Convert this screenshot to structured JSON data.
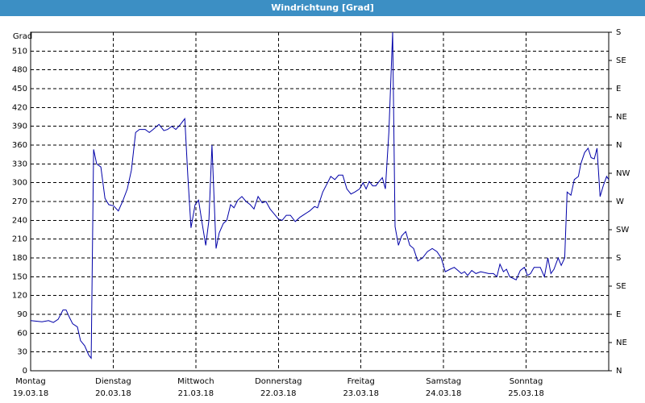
{
  "chart_data": {
    "type": "line",
    "title": "Windrichtung [Grad]",
    "y_label": "Grad",
    "color": "#0000a8",
    "grid": true,
    "xlim": [
      0,
      168
    ],
    "xticks": [
      {
        "value": 0,
        "label": "Montag"
      },
      {
        "value": 24,
        "label": "Dienstag"
      },
      {
        "value": 48,
        "label": "Mittwoch"
      },
      {
        "value": 72,
        "label": "Donnerstag"
      },
      {
        "value": 96,
        "label": "Freitag"
      },
      {
        "value": 120,
        "label": "Samstag"
      },
      {
        "value": 144,
        "label": "Sonntag"
      }
    ],
    "xtick_dates": [
      "19.03.18",
      "20.03.18",
      "21.03.18",
      "22.03.18",
      "23.03.18",
      "24.03.18",
      "25.03.18"
    ],
    "ylim": [
      0,
      540
    ],
    "yticks": [
      0,
      30,
      60,
      90,
      120,
      150,
      180,
      210,
      240,
      270,
      300,
      330,
      360,
      390,
      420,
      450,
      480,
      510
    ],
    "y2lim": [
      0,
      540
    ],
    "y2ticks": [
      {
        "value": 0,
        "label": "N"
      },
      {
        "value": 45,
        "label": "NE"
      },
      {
        "value": 90,
        "label": "E"
      },
      {
        "value": 135,
        "label": "SE"
      },
      {
        "value": 180,
        "label": "S"
      },
      {
        "value": 225,
        "label": "SW"
      },
      {
        "value": 270,
        "label": "W"
      },
      {
        "value": 315,
        "label": "NW"
      },
      {
        "value": 360,
        "label": "N"
      },
      {
        "value": 405,
        "label": "NE"
      },
      {
        "value": 450,
        "label": "E"
      },
      {
        "value": 495,
        "label": "SE"
      },
      {
        "value": 540,
        "label": "S"
      }
    ],
    "x": [
      0,
      3.3,
      5.2,
      6.6,
      8.0,
      9.4,
      10.3,
      11.3,
      12.2,
      13.6,
      14.5,
      15.7,
      16.9,
      17.6,
      18.3,
      19.2,
      20.4,
      21.6,
      22.7,
      24.1,
      25.5,
      26.7,
      28.1,
      29.3,
      30.5,
      31.6,
      33.3,
      34.5,
      35.6,
      37.3,
      38.7,
      39.8,
      41.0,
      42.2,
      43.4,
      44.8,
      45.7,
      46.6,
      47.8,
      48.8,
      49.7,
      50.9,
      51.8,
      52.7,
      53.9,
      54.8,
      56.0,
      57.0,
      58.1,
      59.1,
      60.2,
      61.4,
      62.6,
      63.8,
      64.9,
      66.1,
      67.3,
      68.4,
      69.6,
      70.8,
      72.0,
      73.1,
      74.3,
      75.5,
      76.9,
      78.3,
      79.7,
      81.1,
      82.5,
      83.4,
      84.9,
      86.3,
      87.2,
      88.4,
      89.5,
      90.7,
      91.9,
      93.1,
      94.2,
      95.6,
      96.6,
      97.5,
      98.4,
      99.4,
      100.3,
      101.3,
      102.2,
      103.1,
      104.1,
      105.2,
      105.9,
      106.9,
      107.8,
      109.0,
      110.2,
      111.3,
      112.5,
      113.9,
      115.3,
      116.7,
      118.1,
      119.3,
      120.5,
      121.9,
      123.1,
      124.2,
      125.2,
      126.1,
      127.0,
      128.2,
      129.4,
      130.8,
      133.1,
      134.5,
      135.5,
      136.4,
      137.4,
      138.3,
      139.2,
      141.1,
      142.3,
      143.5,
      144.4,
      145.3,
      146.3,
      148.1,
      149.3,
      150.3,
      151.2,
      152.1,
      153.3,
      154.2,
      155.2,
      155.9,
      157.0,
      158.0,
      159.2,
      159.9,
      161.0,
      162.0,
      162.9,
      163.8,
      164.6,
      165.5,
      166.4,
      167.4,
      168
    ],
    "values": [
      80,
      78,
      80,
      77,
      82,
      97,
      97,
      85,
      75,
      70,
      48,
      40,
      25,
      20,
      353,
      330,
      325,
      275,
      265,
      263,
      255,
      270,
      290,
      320,
      380,
      385,
      385,
      380,
      385,
      393,
      383,
      385,
      390,
      385,
      392,
      402,
      310,
      228,
      265,
      272,
      240,
      200,
      240,
      360,
      195,
      220,
      235,
      240,
      265,
      260,
      272,
      278,
      270,
      265,
      258,
      278,
      268,
      270,
      258,
      250,
      242,
      240,
      248,
      248,
      238,
      245,
      250,
      255,
      262,
      260,
      285,
      300,
      310,
      305,
      312,
      312,
      290,
      282,
      285,
      290,
      300,
      290,
      302,
      295,
      295,
      302,
      308,
      290,
      380,
      540,
      230,
      200,
      215,
      222,
      200,
      195,
      175,
      180,
      190,
      195,
      190,
      180,
      158,
      162,
      165,
      160,
      155,
      158,
      152,
      160,
      155,
      158,
      155,
      155,
      150,
      170,
      158,
      162,
      150,
      145,
      160,
      165,
      152,
      155,
      165,
      165,
      150,
      180,
      155,
      162,
      180,
      168,
      180,
      285,
      280,
      305,
      310,
      330,
      348,
      355,
      340,
      338,
      355,
      278,
      295,
      310,
      305
    ]
  }
}
